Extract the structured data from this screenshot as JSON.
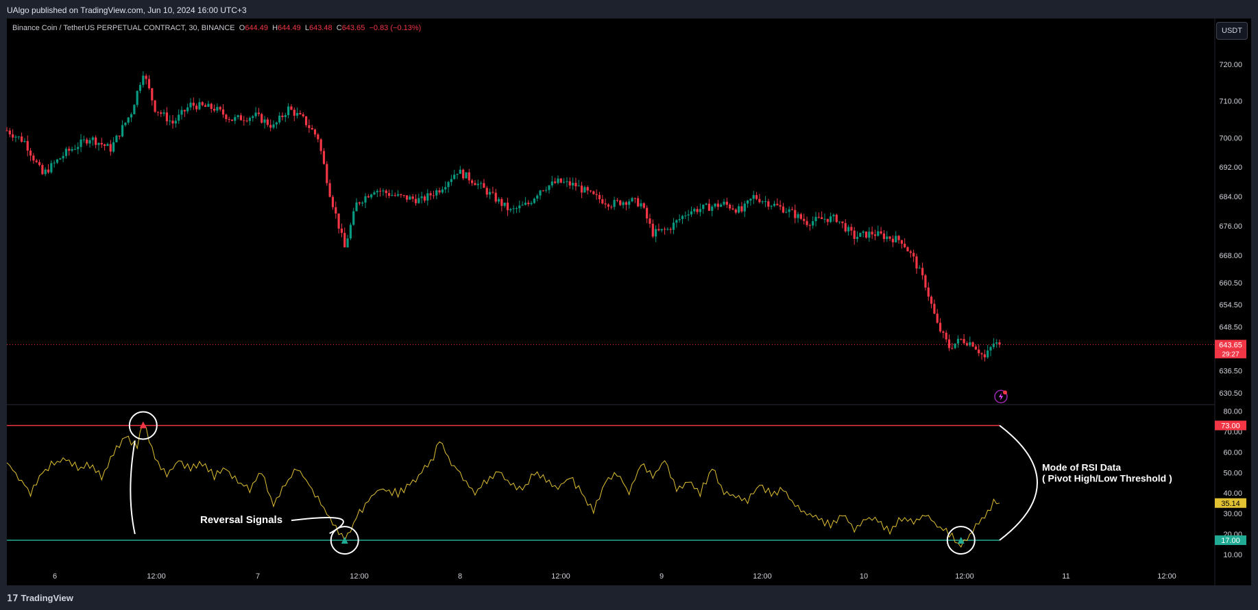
{
  "header": {
    "published": "UAlgo published on TradingView.com, Jun 10, 2024 16:00 UTC+3"
  },
  "legend": {
    "symbol": "Binance Coin / TetherUS PERPETUAL CONTRACT, 30, BINANCE",
    "o_label": "O",
    "o": "644.49",
    "h_label": "H",
    "h": "644.49",
    "l_label": "L",
    "l": "643.48",
    "c_label": "C",
    "c": "643.65",
    "change": "−0.83 (−0.13%)"
  },
  "currency_button": "USDT",
  "footer": {
    "brand": "TradingView"
  },
  "colors": {
    "up": "#089981",
    "down": "#f23645",
    "rsi": "#e2c233",
    "upper": "#f23645",
    "lower": "#22ab94",
    "bg": "#000000"
  },
  "chart_data": [
    {
      "type": "candlestick",
      "title": "Binance Coin / TetherUS PERPETUAL CONTRACT, 30, BINANCE",
      "interval": "30",
      "x_ticks": [
        "6",
        "12:00",
        "7",
        "12:00",
        "8",
        "12:00",
        "9",
        "12:00",
        "10",
        "12:00",
        "11",
        "12:00"
      ],
      "y_ticks": [
        "720.00",
        "710.00",
        "700.00",
        "692.00",
        "684.00",
        "676.00",
        "668.00",
        "660.50",
        "654.50",
        "648.50",
        "636.50",
        "630.50"
      ],
      "last_price": "643.65",
      "countdown": "29:27",
      "ylim": [
        627.5,
        732.5
      ],
      "close_path": [
        [
          0,
          702
        ],
        [
          6,
          699
        ],
        [
          12,
          690
        ],
        [
          20,
          696
        ],
        [
          28,
          700
        ],
        [
          35,
          697
        ],
        [
          42,
          707
        ],
        [
          46,
          718
        ],
        [
          50,
          708
        ],
        [
          56,
          704
        ],
        [
          62,
          709
        ],
        [
          70,
          708
        ],
        [
          76,
          705
        ],
        [
          84,
          706
        ],
        [
          90,
          703
        ],
        [
          95,
          708
        ],
        [
          100,
          705
        ],
        [
          105,
          700
        ],
        [
          109,
          685
        ],
        [
          114,
          670
        ],
        [
          118,
          682
        ],
        [
          124,
          686
        ],
        [
          132,
          684
        ],
        [
          140,
          683
        ],
        [
          146,
          686
        ],
        [
          152,
          691
        ],
        [
          158,
          688
        ],
        [
          164,
          684
        ],
        [
          170,
          680
        ],
        [
          176,
          682
        ],
        [
          180,
          686
        ],
        [
          186,
          688
        ],
        [
          192,
          687
        ],
        [
          198,
          684
        ],
        [
          204,
          682
        ],
        [
          210,
          683
        ],
        [
          214,
          682
        ],
        [
          218,
          674
        ],
        [
          223,
          675
        ],
        [
          230,
          680
        ],
        [
          236,
          681
        ],
        [
          242,
          682
        ],
        [
          248,
          680
        ],
        [
          252,
          684
        ],
        [
          258,
          682
        ],
        [
          264,
          680
        ],
        [
          270,
          677
        ],
        [
          276,
          678
        ],
        [
          280,
          678
        ],
        [
          286,
          673
        ],
        [
          292,
          674
        ],
        [
          297,
          673
        ],
        [
          302,
          672
        ],
        [
          306,
          667
        ],
        [
          310,
          660
        ],
        [
          314,
          649
        ],
        [
          318,
          643
        ],
        [
          322,
          645
        ],
        [
          326,
          644
        ],
        [
          330,
          640
        ],
        [
          333,
          644
        ],
        [
          335,
          643.65
        ]
      ],
      "markers": [
        {
          "x": 46,
          "kind": "pivot-high"
        },
        {
          "x": 114,
          "kind": "pivot-low"
        },
        {
          "x": 322,
          "kind": "pivot-low"
        }
      ]
    },
    {
      "type": "line",
      "y_ticks": [
        "80.00",
        "70.00",
        "60.00",
        "50.00",
        "40.00",
        "30.00",
        "20.00",
        "10.00"
      ],
      "ylim": [
        5,
        82.5
      ],
      "upper_threshold": "73.00",
      "lower_threshold": "17.00",
      "last_value": "35.14",
      "series": [
        {
          "values": [
            [
              0,
              55
            ],
            [
              4,
              48
            ],
            [
              8,
              40
            ],
            [
              12,
              50
            ],
            [
              16,
              55
            ],
            [
              20,
              57
            ],
            [
              24,
              52
            ],
            [
              28,
              54
            ],
            [
              32,
              48
            ],
            [
              36,
              60
            ],
            [
              40,
              68
            ],
            [
              44,
              62
            ],
            [
              46,
              75
            ],
            [
              50,
              58
            ],
            [
              54,
              48
            ],
            [
              58,
              56
            ],
            [
              62,
              52
            ],
            [
              66,
              55
            ],
            [
              70,
              48
            ],
            [
              74,
              52
            ],
            [
              78,
              45
            ],
            [
              82,
              42
            ],
            [
              86,
              50
            ],
            [
              90,
              34
            ],
            [
              94,
              44
            ],
            [
              98,
              52
            ],
            [
              104,
              40
            ],
            [
              110,
              25
            ],
            [
              114,
              17
            ],
            [
              118,
              28
            ],
            [
              122,
              37
            ],
            [
              126,
              42
            ],
            [
              132,
              40
            ],
            [
              136,
              44
            ],
            [
              140,
              50
            ],
            [
              144,
              58
            ],
            [
              146,
              65
            ],
            [
              150,
              55
            ],
            [
              154,
              48
            ],
            [
              158,
              40
            ],
            [
              162,
              46
            ],
            [
              166,
              51
            ],
            [
              170,
              44
            ],
            [
              174,
              42
            ],
            [
              178,
              50
            ],
            [
              182,
              46
            ],
            [
              186,
              42
            ],
            [
              190,
              48
            ],
            [
              194,
              40
            ],
            [
              198,
              32
            ],
            [
              202,
              46
            ],
            [
              206,
              50
            ],
            [
              210,
              40
            ],
            [
              214,
              54
            ],
            [
              218,
              48
            ],
            [
              222,
              56
            ],
            [
              226,
              42
            ],
            [
              230,
              46
            ],
            [
              234,
              40
            ],
            [
              238,
              52
            ],
            [
              242,
              40
            ],
            [
              246,
              38
            ],
            [
              250,
              36
            ],
            [
              254,
              44
            ],
            [
              258,
              40
            ],
            [
              262,
              42
            ],
            [
              266,
              34
            ],
            [
              270,
              30
            ],
            [
              274,
              28
            ],
            [
              278,
              24
            ],
            [
              282,
              30
            ],
            [
              286,
              22
            ],
            [
              290,
              28
            ],
            [
              294,
              26
            ],
            [
              298,
              22
            ],
            [
              302,
              28
            ],
            [
              306,
              26
            ],
            [
              310,
              30
            ],
            [
              314,
              24
            ],
            [
              318,
              20
            ],
            [
              322,
              14
            ],
            [
              326,
              22
            ],
            [
              330,
              28
            ],
            [
              333,
              35.14
            ]
          ]
        }
      ],
      "markers": [
        {
          "x": 46,
          "kind": "signal-high"
        },
        {
          "x": 114,
          "kind": "signal-low"
        },
        {
          "x": 322,
          "kind": "signal-low"
        }
      ]
    }
  ],
  "annotations": {
    "reversal": "Reversal Signals",
    "mode_line1": "Mode of RSI Data",
    "mode_line2": "( Pivot High/Low Threshold )"
  }
}
